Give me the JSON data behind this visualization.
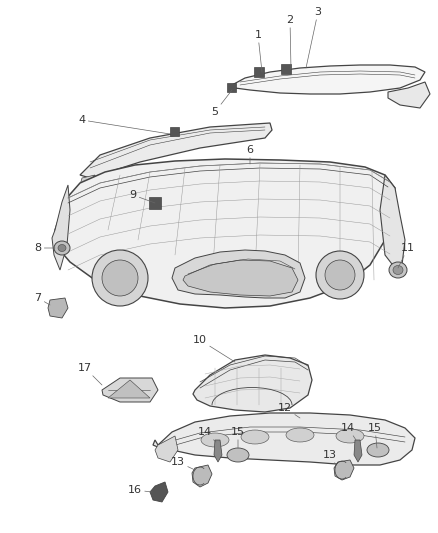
{
  "background_color": "#ffffff",
  "line_color": "#444444",
  "label_color": "#333333",
  "fig_width": 4.38,
  "fig_height": 5.33,
  "dpi": 100,
  "xlim": [
    0,
    438
  ],
  "ylim": [
    533,
    0
  ]
}
